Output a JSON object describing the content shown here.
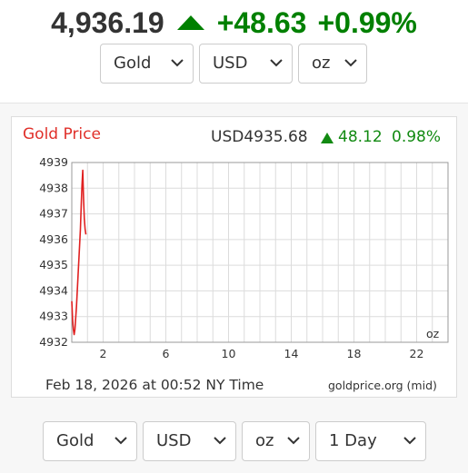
{
  "ticker": {
    "price": "4,936.19",
    "change": "+48.63",
    "percent": "+0.99%",
    "direction": "up",
    "up_color": "#008000"
  },
  "top_selects": [
    {
      "name": "metal",
      "value": "Gold"
    },
    {
      "name": "currency",
      "value": "USD"
    },
    {
      "name": "unit",
      "value": "oz"
    }
  ],
  "chart": {
    "title": "Gold Price",
    "quote_value": "USD4935.68",
    "quote_change": "48.12",
    "quote_percent": "0.98%",
    "unit_label": "oz",
    "timestamp": "Feb 18, 2026 at 00:52 NY Time",
    "source": "goldprice.org (mid)",
    "title_color": "#e0302a",
    "line_color": "#e02020"
  },
  "chart_data": {
    "type": "line",
    "title": "Gold Price",
    "xlabel": "",
    "ylabel": "",
    "x_ticks": [
      2,
      6,
      10,
      14,
      18,
      22
    ],
    "y_ticks": [
      4932,
      4933,
      4934,
      4935,
      4936,
      4937,
      4938,
      4939
    ],
    "xlim": [
      0,
      24
    ],
    "ylim": [
      4932,
      4939
    ],
    "grid": true,
    "series": [
      {
        "x": [
          0.0,
          0.05,
          0.1,
          0.15,
          0.2,
          0.3,
          0.4,
          0.5,
          0.55,
          0.6,
          0.65,
          0.7,
          0.75,
          0.8,
          0.85,
          0.9
        ],
        "y": [
          4933.6,
          4932.9,
          4932.5,
          4932.3,
          4932.5,
          4933.4,
          4934.6,
          4935.8,
          4936.4,
          4937.3,
          4938.1,
          4938.7,
          4937.6,
          4936.8,
          4936.4,
          4936.2
        ]
      }
    ]
  },
  "bottom_selects": [
    {
      "name": "metal",
      "value": "Gold"
    },
    {
      "name": "currency",
      "value": "USD"
    },
    {
      "name": "unit",
      "value": "oz"
    },
    {
      "name": "range",
      "value": "1 Day"
    }
  ]
}
